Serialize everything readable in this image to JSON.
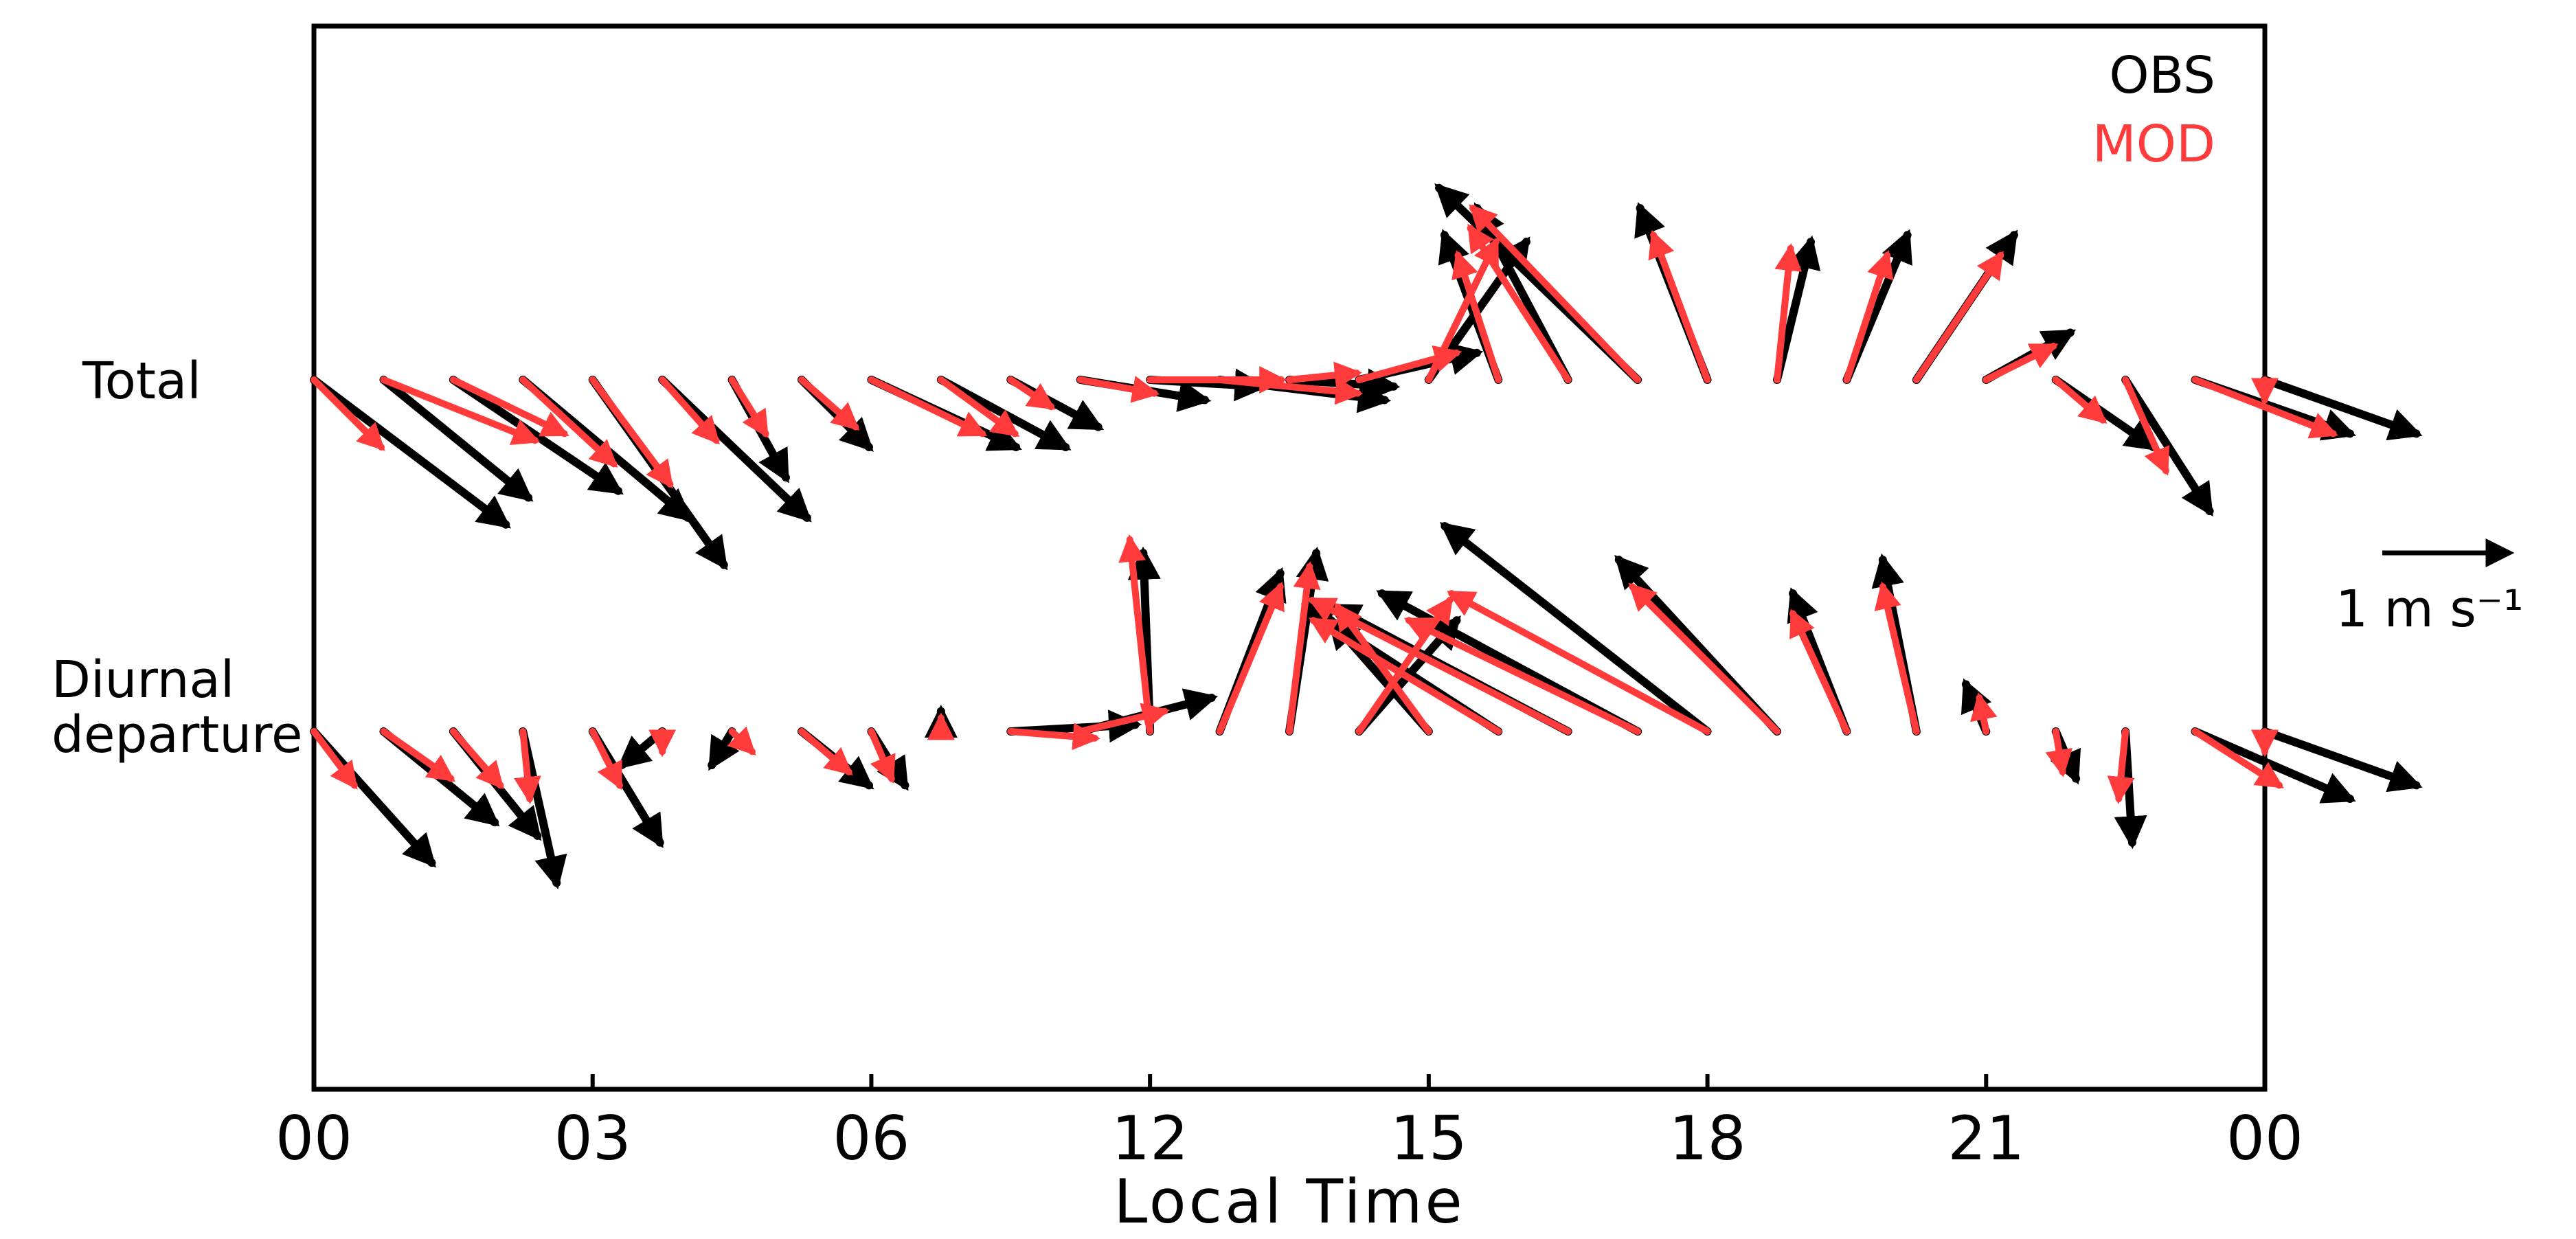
{
  "chart_data": {
    "type": "vector",
    "xlabel": "Local Time",
    "x_ticks": [
      "00",
      "03",
      "06",
      "12",
      "15",
      "18",
      "21",
      "00"
    ],
    "legend": {
      "position": "top-right",
      "entries": [
        {
          "label": "OBS",
          "color": "#000000"
        },
        {
          "label": "MOD",
          "color": "#ff3b3b"
        }
      ]
    },
    "reference_vector": {
      "value": 1,
      "label": "1  m  s⁻¹"
    },
    "rows": [
      {
        "label": "Total",
        "series": [
          {
            "name": "OBS",
            "color": "#000000",
            "u": [
              0.57,
              0.43,
              0.49,
              0.49,
              0.39,
              0.43,
              0.16,
              0.2,
              0.43,
              0.37,
              0.26,
              0.37,
              0.33,
              0.49,
              0.31,
              0.35,
              0.29,
              -0.16,
              -0.27,
              -0.59,
              -0.2,
              0.1,
              0.18,
              0.29,
              0.25,
              0.29,
              0.25,
              0.46,
              0.45
            ],
            "v": [
              -0.43,
              -0.35,
              -0.33,
              -0.41,
              -0.55,
              -0.41,
              -0.29,
              -0.2,
              -0.2,
              -0.2,
              -0.14,
              -0.06,
              -0.02,
              -0.06,
              -0.02,
              0.08,
              0.41,
              0.43,
              0.51,
              0.57,
              0.51,
              0.41,
              0.43,
              0.43,
              0.14,
              -0.2,
              -0.39,
              -0.16,
              -0.16
            ]
          },
          {
            "name": "MOD",
            "color": "#ff3b3b",
            "u": [
              0.2,
              0.45,
              0.33,
              0.27,
              0.23,
              0.16,
              0.1,
              0.16,
              0.33,
              0.22,
              0.12,
              0.22,
              0.39,
              0.41,
              0.2,
              0.29,
              0.2,
              -0.12,
              -0.29,
              -0.49,
              -0.16,
              0.04,
              0.12,
              0.25,
              0.2,
              0.14,
              0.12,
              0.41,
              0.0
            ],
            "v": [
              -0.2,
              -0.18,
              -0.16,
              -0.25,
              -0.31,
              -0.18,
              -0.16,
              -0.14,
              -0.16,
              -0.16,
              -0.08,
              -0.04,
              0.0,
              -0.04,
              0.02,
              0.08,
              0.41,
              0.37,
              0.45,
              0.51,
              0.43,
              0.39,
              0.37,
              0.37,
              0.1,
              -0.12,
              -0.27,
              -0.16,
              -0.06
            ]
          }
        ]
      },
      {
        "label": "Diurnal departure",
        "series": [
          {
            "name": "OBS",
            "color": "#000000",
            "u": [
              0.35,
              0.33,
              0.25,
              0.1,
              0.2,
              -0.12,
              -0.06,
              0.2,
              0.1,
              0.0,
              0.37,
              0.39,
              -0.02,
              0.18,
              0.08,
              0.29,
              -0.29,
              -0.57,
              -0.7,
              -0.76,
              -0.78,
              -0.47,
              -0.16,
              -0.1,
              -0.06,
              0.06,
              0.02,
              0.46,
              0.45
            ],
            "v": [
              -0.39,
              -0.27,
              -0.31,
              -0.45,
              -0.33,
              -0.1,
              -0.1,
              -0.16,
              -0.16,
              0.06,
              0.02,
              0.1,
              0.53,
              0.47,
              0.53,
              0.33,
              0.33,
              0.37,
              0.37,
              0.41,
              0.61,
              0.51,
              0.41,
              0.51,
              0.14,
              -0.14,
              -0.33,
              -0.2,
              -0.16
            ]
          },
          {
            "name": "MOD",
            "color": "#ff3b3b",
            "u": [
              0.12,
              0.2,
              0.14,
              0.02,
              0.08,
              0.0,
              0.06,
              0.14,
              0.06,
              0.0,
              0.25,
              0.25,
              -0.06,
              0.18,
              0.06,
              0.27,
              -0.27,
              -0.55,
              -0.76,
              -0.68,
              -0.76,
              -0.43,
              -0.16,
              -0.1,
              -0.02,
              0.02,
              -0.02,
              0.25,
              0.0
            ],
            "v": [
              -0.16,
              -0.14,
              -0.16,
              -0.2,
              -0.16,
              -0.06,
              -0.06,
              -0.12,
              -0.14,
              0.04,
              -0.02,
              0.06,
              0.57,
              0.43,
              0.49,
              0.39,
              0.37,
              0.33,
              0.39,
              0.33,
              0.41,
              0.43,
              0.35,
              0.43,
              0.1,
              -0.12,
              -0.2,
              -0.16,
              -0.06
            ]
          }
        ]
      }
    ]
  }
}
